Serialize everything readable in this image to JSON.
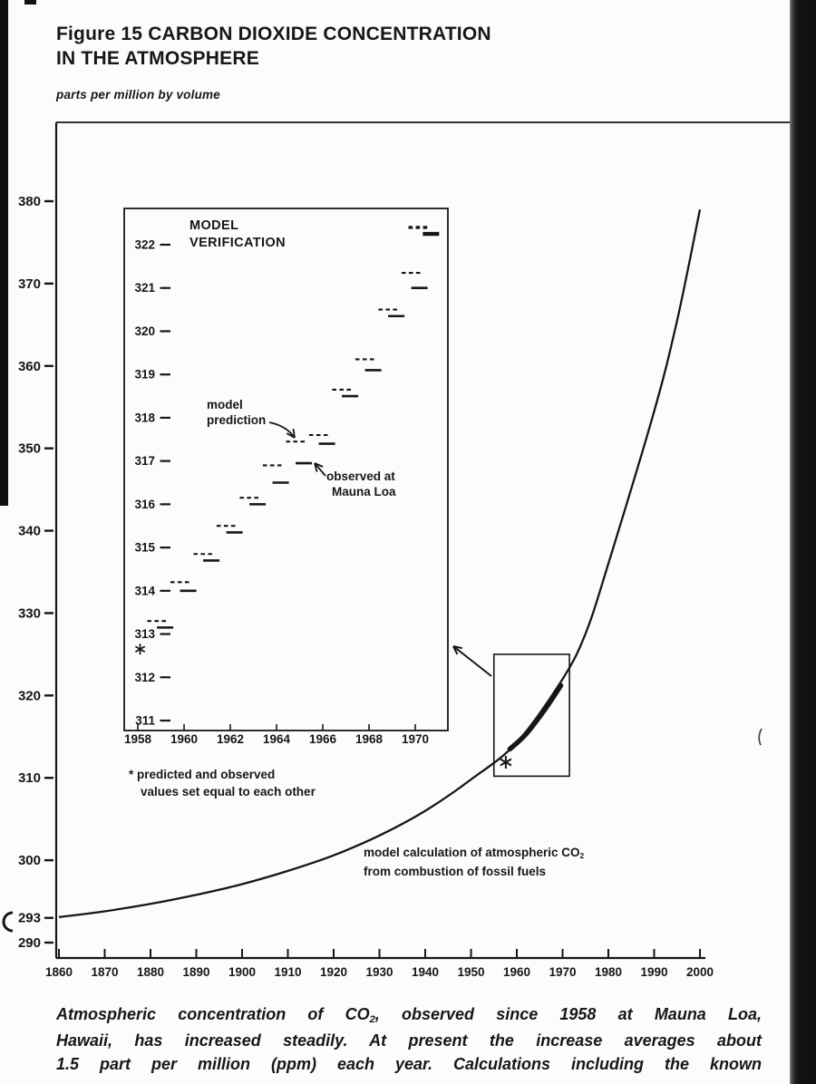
{
  "figure": {
    "title_line1": "Figure 15 CARBON DIOXIDE CONCENTRATION",
    "title_line2": "IN THE ATMOSPHERE",
    "units_label": "parts per million by volume"
  },
  "labels": {
    "inset_title_line1": "MODEL",
    "inset_title_line2": "VERIFICATION",
    "model_prediction_line1": "model",
    "model_prediction_line2": "prediction",
    "observed_line1": "observed at",
    "observed_line2": "Mauna Loa",
    "footnote_line1": "* predicted and observed",
    "footnote_line2": "values set equal to each other",
    "curve_label_pre": "model calculation of atmospheric CO",
    "curve_label_sub": "2",
    "curve_label_line2": "from combustion of fossil fuels"
  },
  "caption": {
    "line1_pre": "Atmospheric concentration of CO",
    "line1_sub": "2",
    "line1_post": ", observed since 1958 at Mauna Loa,",
    "line2": "Hawaii, has increased steadily. At present the increase averages about",
    "line3": "1.5 part per million (ppm) each year. Calculations including the known"
  },
  "chart_data": [
    {
      "id": "main",
      "type": "line",
      "title": "Figure 15 Carbon Dioxide Concentration in the Atmosphere",
      "ylabel": "parts per million by volume",
      "xlim": [
        1860,
        2000
      ],
      "ylim": [
        290,
        381
      ],
      "grid": false,
      "x_ticks": [
        1860,
        1870,
        1880,
        1890,
        1900,
        1910,
        1920,
        1930,
        1940,
        1950,
        1960,
        1970,
        1980,
        1990,
        2000
      ],
      "y_ticks": [
        290,
        293,
        300,
        310,
        320,
        330,
        340,
        350,
        360,
        370,
        380
      ],
      "series": [
        {
          "name": "model calculation of atmospheric CO2 from combustion of fossil fuels",
          "style": "curve",
          "points": [
            [
              1860,
              293.1
            ],
            [
              1870,
              293.8
            ],
            [
              1880,
              294.7
            ],
            [
              1890,
              295.8
            ],
            [
              1900,
              297.1
            ],
            [
              1910,
              298.7
            ],
            [
              1920,
              300.6
            ],
            [
              1930,
              303.0
            ],
            [
              1940,
              306.0
            ],
            [
              1950,
              309.8
            ],
            [
              1960,
              314.3
            ],
            [
              1970,
              322.0
            ],
            [
              1975,
              327.5
            ],
            [
              1980,
              336.0
            ],
            [
              1990,
              354.5
            ],
            [
              1995,
              365.5
            ],
            [
              2000,
              379.0
            ]
          ]
        },
        {
          "name": "observed at Mauna Loa 1958-1970 (thick segment)",
          "style": "thick",
          "points": [
            [
              1958.5,
              313.5
            ],
            [
              1962,
              315.3
            ],
            [
              1966,
              318.2
            ],
            [
              1969.6,
              321.2
            ]
          ]
        }
      ],
      "asterisk_point": [
        1957.6,
        311.9
      ],
      "zoom_box": {
        "x1": 1955,
        "x2": 1971.5,
        "y1": 310.2,
        "y2": 325
      }
    },
    {
      "id": "inset",
      "type": "line",
      "title": "MODEL VERIFICATION",
      "xlim": [
        1957.4,
        1971.6
      ],
      "ylim": [
        311,
        322.6
      ],
      "grid": false,
      "x_ticks": [
        1958,
        1960,
        1962,
        1964,
        1966,
        1968,
        1970
      ],
      "y_ticks": [
        311,
        312,
        313,
        314,
        315,
        316,
        317,
        318,
        319,
        320,
        321,
        322
      ],
      "series": [
        {
          "name": "observed at Mauna Loa",
          "style": "solid",
          "points": [
            [
              1959,
              313.15
            ],
            [
              1960,
              314.0
            ],
            [
              1961,
              314.7
            ],
            [
              1962,
              315.35
            ],
            [
              1963,
              316.0
            ],
            [
              1964,
              316.5
            ],
            [
              1965,
              316.95
            ],
            [
              1966,
              317.4
            ],
            [
              1967,
              318.5
            ],
            [
              1968,
              319.1
            ],
            [
              1969,
              320.35
            ],
            [
              1970,
              321.0
            ],
            [
              1970.5,
              322.25
            ]
          ]
        },
        {
          "name": "model prediction",
          "style": "dashed",
          "points": [
            [
              1959,
              313.3
            ],
            [
              1960,
              314.2
            ],
            [
              1961,
              314.85
            ],
            [
              1962,
              315.5
            ],
            [
              1963,
              316.15
            ],
            [
              1964,
              316.9
            ],
            [
              1965,
              317.45
            ],
            [
              1966,
              317.6
            ],
            [
              1967,
              318.65
            ],
            [
              1968,
              319.35
            ],
            [
              1969,
              320.5
            ],
            [
              1970,
              321.35
            ],
            [
              1970.3,
              322.4
            ]
          ]
        }
      ],
      "asterisk_point": [
        1958.1,
        312.65
      ],
      "footnote": "* predicted and observed values set equal to each other"
    }
  ]
}
